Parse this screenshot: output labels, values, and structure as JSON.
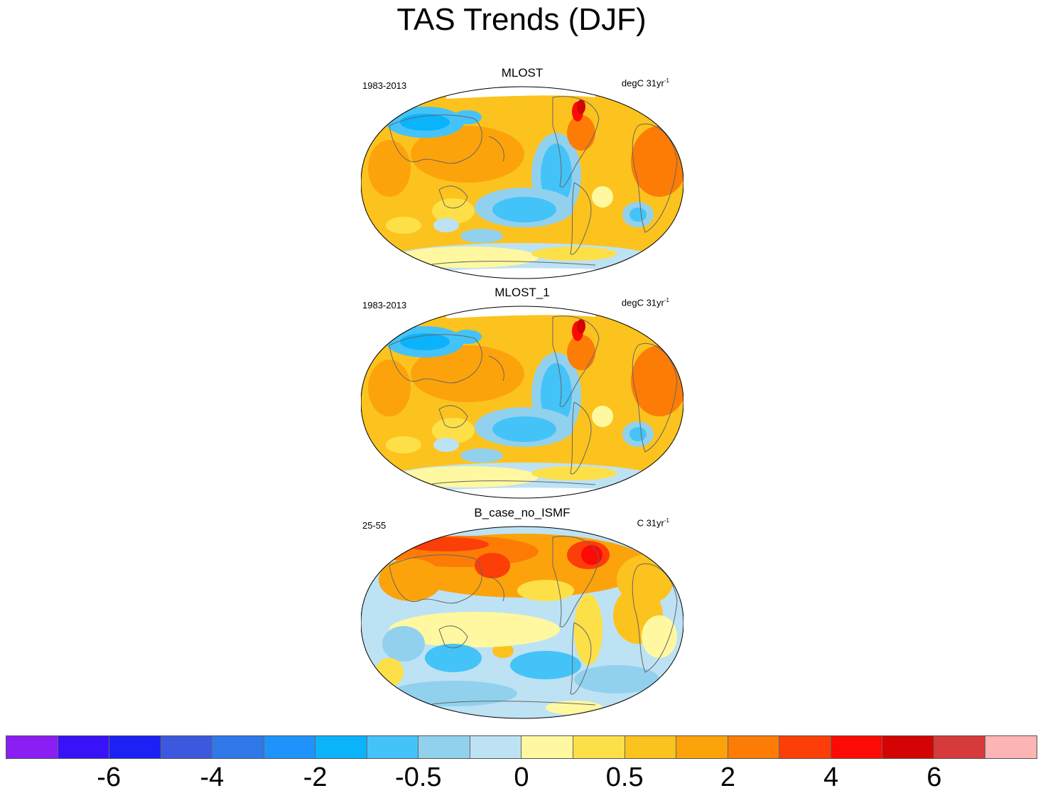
{
  "title": "TAS Trends (DJF)",
  "panels": [
    {
      "name": "MLOST",
      "period": "1983-2013",
      "units": "degC 31yr",
      "units_exp": "-1",
      "pattern": "obs"
    },
    {
      "name": "MLOST_1",
      "period": "1983-2013",
      "units": "degC 31yr",
      "units_exp": "-1",
      "pattern": "obs"
    },
    {
      "name": "B_case_no_ISMF",
      "period": "25-55",
      "units": "C 31yr",
      "units_exp": "-1",
      "pattern": "model"
    }
  ],
  "colorbar": {
    "colors": [
      "#8b1ef2",
      "#3a12f8",
      "#1c22f4",
      "#3c58de",
      "#2f78ea",
      "#1f93fb",
      "#0bb3fb",
      "#44c3f9",
      "#91d1ee",
      "#bde2f4",
      "#fff8a0",
      "#fde048",
      "#fcc31e",
      "#fca30b",
      "#fc7c06",
      "#fc3e08",
      "#fc0a06",
      "#d40404",
      "#d63a3a",
      "#fdb4b4"
    ],
    "labels": [
      {
        "text": "-6",
        "boundary": 2
      },
      {
        "text": "-4",
        "boundary": 4
      },
      {
        "text": "-2",
        "boundary": 6
      },
      {
        "text": "-0.5",
        "boundary": 8
      },
      {
        "text": "0",
        "boundary": 10
      },
      {
        "text": "0.5",
        "boundary": 12
      },
      {
        "text": "2",
        "boundary": 14
      },
      {
        "text": "4",
        "boundary": 16
      },
      {
        "text": "6",
        "boundary": 18
      }
    ]
  }
}
